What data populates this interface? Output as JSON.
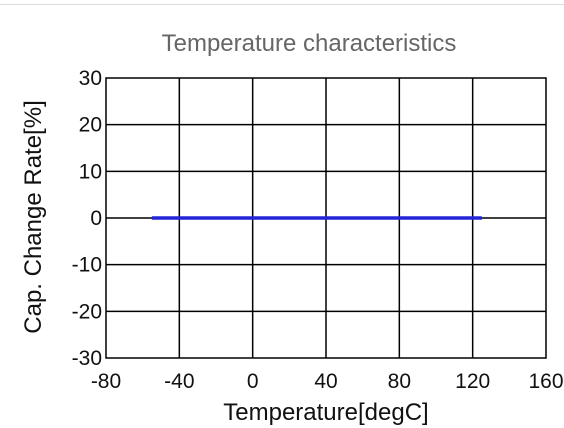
{
  "chart_data": {
    "type": "line",
    "title": "Temperature characteristics",
    "xlabel": "Temperature[degC]",
    "ylabel": "Cap. Change Rate[%]",
    "xlim": [
      -80,
      160
    ],
    "ylim": [
      -30,
      30
    ],
    "xticks": [
      -80,
      -40,
      0,
      40,
      80,
      120,
      160
    ],
    "yticks": [
      30,
      20,
      10,
      0,
      -10,
      -20,
      -30
    ],
    "grid": true,
    "series": [
      {
        "x": [
          -55,
          125
        ],
        "y": [
          0,
          0
        ],
        "color": "#2323d8"
      }
    ]
  }
}
